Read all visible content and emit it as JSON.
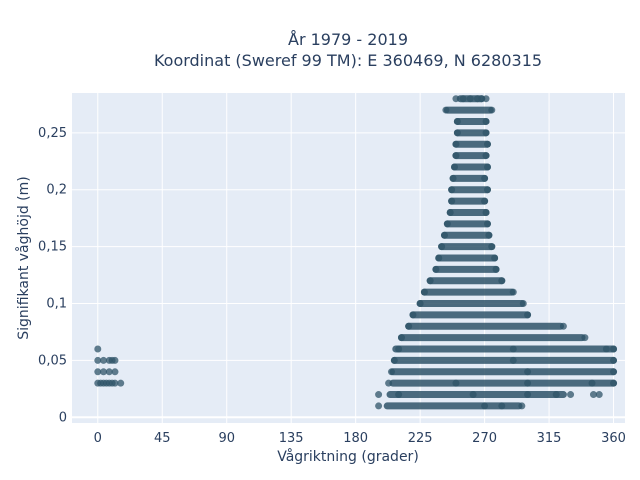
{
  "chart_data": {
    "type": "scatter",
    "title_line1": "År 1979 - 2019",
    "title_line2": "Koordinat (Sweref 99 TM): E 360469, N 6280315",
    "xlabel": "Vågriktning (grader)",
    "ylabel": "Signifikant våghöjd (m)",
    "xlim": [
      -18,
      368
    ],
    "ylim": [
      -0.005,
      0.285
    ],
    "xticks": [
      0,
      45,
      90,
      135,
      180,
      225,
      270,
      315,
      360
    ],
    "xtick_labels": [
      "0",
      "45",
      "90",
      "135",
      "180",
      "225",
      "270",
      "315",
      "360"
    ],
    "yticks": [
      0,
      0.05,
      0.1,
      0.15,
      0.2,
      0.25
    ],
    "ytick_labels": [
      "0",
      "0,05",
      "0,1",
      "0,15",
      "0,2",
      "0,25"
    ],
    "grid": true,
    "marker_color": "#2f5468",
    "plot_bg": "#e5ecf6",
    "clusters": [
      {
        "y": 0.01,
        "x": [
          196,
          270,
          282,
          296
        ]
      },
      {
        "y": 0.02,
        "x": [
          196,
          210,
          262,
          300,
          320,
          330,
          346,
          350
        ]
      },
      {
        "y": 0.03,
        "x": [
          0,
          2,
          4,
          6,
          8,
          10,
          12,
          16,
          203,
          250,
          300,
          345,
          360
        ]
      },
      {
        "y": 0.04,
        "x": [
          0,
          4,
          8,
          12,
          205,
          300,
          360
        ]
      },
      {
        "y": 0.05,
        "x": [
          0,
          4,
          8,
          10,
          12,
          207,
          290,
          360
        ]
      },
      {
        "y": 0.06,
        "x": [
          0,
          210,
          290,
          355,
          360
        ]
      },
      {
        "y": 0.07,
        "x": [
          212,
          340
        ]
      },
      {
        "y": 0.08,
        "x": [
          217,
          325
        ]
      },
      {
        "y": 0.09,
        "x": [
          220,
          300
        ]
      },
      {
        "y": 0.1,
        "x": [
          225,
          297
        ]
      },
      {
        "y": 0.11,
        "x": [
          228,
          290
        ]
      },
      {
        "y": 0.12,
        "x": [
          232,
          282
        ]
      },
      {
        "y": 0.13,
        "x": [
          236,
          278
        ]
      },
      {
        "y": 0.14,
        "x": [
          238,
          277
        ]
      },
      {
        "y": 0.15,
        "x": [
          240,
          275
        ]
      },
      {
        "y": 0.16,
        "x": [
          242,
          273
        ]
      },
      {
        "y": 0.17,
        "x": [
          244,
          272
        ]
      },
      {
        "y": 0.18,
        "x": [
          246,
          271
        ]
      },
      {
        "y": 0.19,
        "x": [
          247,
          270
        ]
      },
      {
        "y": 0.2,
        "x": [
          247,
          272
        ]
      },
      {
        "y": 0.21,
        "x": [
          248,
          270
        ]
      },
      {
        "y": 0.22,
        "x": [
          249,
          272
        ]
      },
      {
        "y": 0.23,
        "x": [
          250,
          271
        ]
      },
      {
        "y": 0.24,
        "x": [
          250,
          272
        ]
      },
      {
        "y": 0.25,
        "x": [
          251,
          271
        ]
      },
      {
        "y": 0.26,
        "x": [
          251,
          271
        ]
      },
      {
        "y": 0.27,
        "x": [
          243,
          275
        ]
      },
      {
        "y": 0.28,
        "x": [
          250,
          255,
          260,
          265,
          268,
          271
        ]
      }
    ],
    "segments": [
      {
        "y": 0.01,
        "x0": 202,
        "x1": 294
      },
      {
        "y": 0.02,
        "x0": 204,
        "x1": 325
      },
      {
        "y": 0.03,
        "x0": 206,
        "x1": 360
      },
      {
        "y": 0.04,
        "x0": 206,
        "x1": 360
      },
      {
        "y": 0.05,
        "x0": 207,
        "x1": 360
      },
      {
        "y": 0.06,
        "x0": 208,
        "x1": 360
      },
      {
        "y": 0.07,
        "x0": 212,
        "x1": 338
      },
      {
        "y": 0.08,
        "x0": 217,
        "x1": 323
      },
      {
        "y": 0.09,
        "x0": 220,
        "x1": 300
      },
      {
        "y": 0.1,
        "x0": 225,
        "x1": 296
      },
      {
        "y": 0.11,
        "x0": 228,
        "x1": 289
      },
      {
        "y": 0.12,
        "x0": 232,
        "x1": 282
      },
      {
        "y": 0.13,
        "x0": 236,
        "x1": 278
      },
      {
        "y": 0.14,
        "x0": 238,
        "x1": 277
      },
      {
        "y": 0.15,
        "x0": 240,
        "x1": 275
      },
      {
        "y": 0.16,
        "x0": 242,
        "x1": 273
      },
      {
        "y": 0.17,
        "x0": 244,
        "x1": 272
      },
      {
        "y": 0.18,
        "x0": 246,
        "x1": 271
      },
      {
        "y": 0.19,
        "x0": 247,
        "x1": 270
      },
      {
        "y": 0.2,
        "x0": 247,
        "x1": 272
      },
      {
        "y": 0.21,
        "x0": 248,
        "x1": 270
      },
      {
        "y": 0.22,
        "x0": 249,
        "x1": 272
      },
      {
        "y": 0.23,
        "x0": 250,
        "x1": 271
      },
      {
        "y": 0.24,
        "x0": 250,
        "x1": 272
      },
      {
        "y": 0.25,
        "x0": 251,
        "x1": 271
      },
      {
        "y": 0.26,
        "x0": 251,
        "x1": 271
      },
      {
        "y": 0.27,
        "x0": 244,
        "x1": 274
      },
      {
        "y": 0.28,
        "x0": 253,
        "x1": 268
      }
    ]
  }
}
